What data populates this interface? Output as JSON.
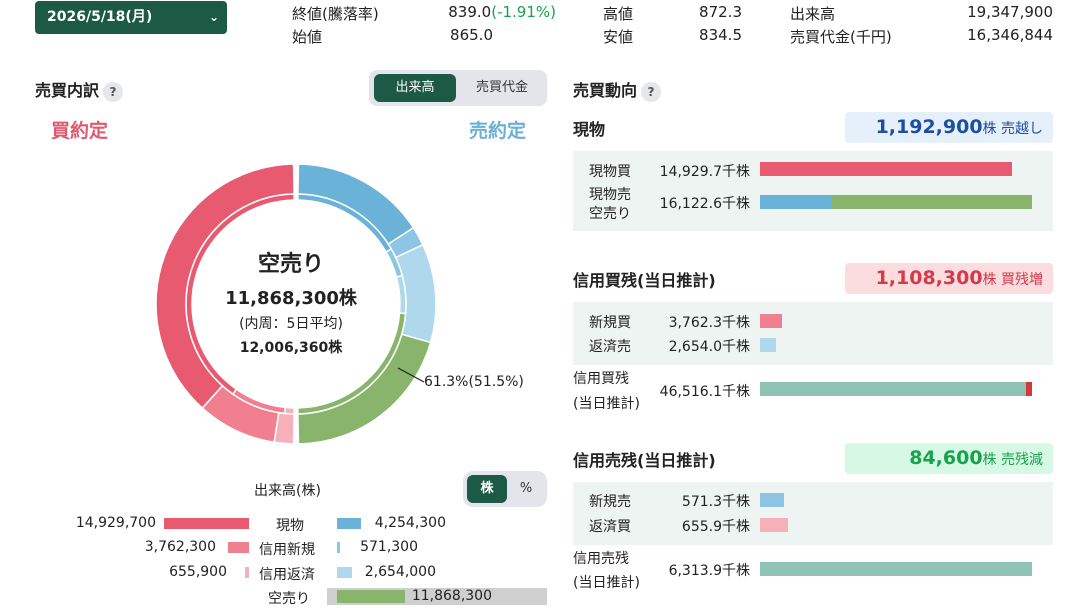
{
  "date_select": {
    "value": "2026/5/18(月)"
  },
  "quote": {
    "close_label": "終値(騰落率)",
    "close_value": "839.0",
    "close_change": "(-1.91%)",
    "open_label": "始値",
    "open_value": "865.0",
    "high_label": "高値",
    "high_value": "872.3",
    "low_label": "安値",
    "low_value": "834.5",
    "volume_label": "出来高",
    "volume_value": "19,347,900",
    "turnover_label": "売買代金(千円)",
    "turnover_value": "16,346,844"
  },
  "breakdown": {
    "title": "売買内訳",
    "help": "?",
    "toggle": [
      "出来高",
      "売買代金"
    ],
    "buy_label": "買約定",
    "sell_label": "売約定",
    "center_title": "空売り",
    "center_value": "11,868,300株",
    "center_sub": "(内周：5日平均)",
    "center_avg": "12,006,360株",
    "callout": "61.3%(51.5%)",
    "unit_label": "出来高(株)",
    "unit_toggle": [
      "株",
      "%"
    ],
    "colors": {
      "genbutsu_buy": "#e85a70",
      "shinki_buy": "#f0808f",
      "hensai_buy": "#f6b0ba",
      "genbutsu_sell": "#6ab2d8",
      "shinki_sell": "#8cc6e4",
      "hensai_sell": "#b0d8ec",
      "karauri": "#88b56b"
    },
    "legend": [
      {
        "left_value": "14,929,700",
        "label": "現物",
        "right_value": "4,254,300",
        "left_frac": 1.0,
        "right_frac": 0.285
      },
      {
        "left_value": "3,762,300",
        "label": "信用新規",
        "right_value": "571,300",
        "left_frac": 0.252,
        "right_frac": 0.038
      },
      {
        "left_value": "655,900",
        "label": "信用返済",
        "right_value": "2,654,000",
        "left_frac": 0.044,
        "right_frac": 0.178
      },
      {
        "label": "空売り",
        "right_value": "11,868,300"
      }
    ]
  },
  "trend": {
    "title": "売買動向",
    "help": "?",
    "genbutsu": {
      "title": "現物",
      "badge_value": "1,192,900",
      "badge_unit": "株 売越し",
      "rows": [
        {
          "label": "現物買",
          "value": "14,929.7千株"
        },
        {
          "label": "現物売",
          "label2": "空売り",
          "value": "16,122.6千株"
        }
      ],
      "buy_frac": 0.926,
      "sell_genbutsu_frac": 0.264,
      "sell_karauri_frac": 0.736
    },
    "margin_buy": {
      "title": "信用買残(当日推計)",
      "badge_value": "1,108,300",
      "badge_unit": "株 買残増",
      "rows": [
        {
          "label": "新規買",
          "value": "3,762.3千株"
        },
        {
          "label": "返済売",
          "value": "2,654.0千株"
        },
        {
          "label": "信用買残",
          "label2": "(当日推計)",
          "value": "46,516.1千株"
        }
      ],
      "new_frac": 0.081,
      "repay_frac": 0.057,
      "balance_frac": 1.0
    },
    "margin_sell": {
      "title": "信用売残(当日推計)",
      "badge_value": "84,600",
      "badge_unit": "株 売残減",
      "rows": [
        {
          "label": "新規売",
          "value": "571.3千株"
        },
        {
          "label": "返済買",
          "value": "655.9千株"
        },
        {
          "label": "信用売残",
          "label2": "(当日推計)",
          "value": "6,313.9千株"
        }
      ],
      "new_frac": 0.09,
      "repay_frac": 0.104,
      "balance_frac": 1.0
    }
  }
}
